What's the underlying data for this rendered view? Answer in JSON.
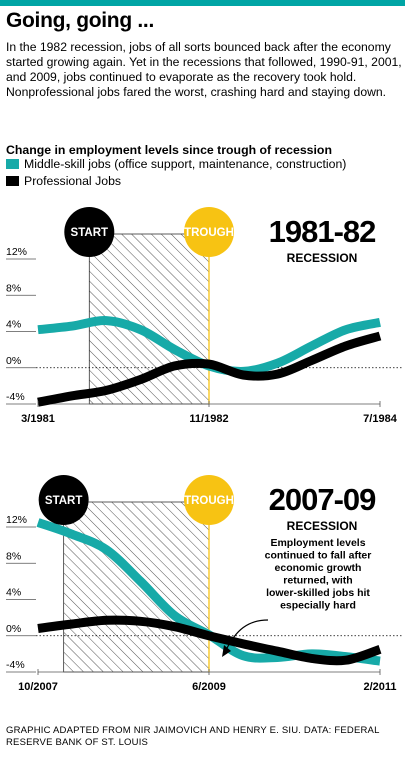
{
  "header": {
    "title": "Going, going ...",
    "intro": "In the 1982 recession, jobs of all sorts bounced back after the economy started growing again. Yet in the recessions that followed, 1990-91, 2001, and 2009, jobs continued to evaporate as the recovery took hold. Nonprofessional jobs fared the worst, crashing hard and staying down.",
    "subtitle": "Change in employment levels since trough of recession"
  },
  "legend": {
    "middle_skill": "Middle-skill jobs (office support, maintenance, construction)",
    "professional": "Professional Jobs"
  },
  "colors": {
    "accent": "#00a5a5",
    "middle_skill": "#17aaa8",
    "professional": "#000000",
    "trough": "#f7c313",
    "start": "#000000",
    "hatch": "#555555",
    "axis": "#555555"
  },
  "footer": {
    "credit": "GRAPHIC ADAPTED FROM NIR JAIMOVICH AND HENRY E. SIU. DATA: FEDERAL RESERVE BANK OF ST. LOUIS"
  },
  "chart_data": [
    {
      "type": "line",
      "title": "1981-82",
      "subtitle": "RECESSION",
      "start_label": "START",
      "trough_label": "TROUGH",
      "annotation": "",
      "ylim": [
        -4,
        12
      ],
      "yticks": [
        12,
        8,
        4,
        0,
        -4
      ],
      "ytick_labels": [
        "12%",
        "8%",
        "4%",
        "0%",
        "-4%"
      ],
      "xlim": [
        0,
        40
      ],
      "xtick_positions": [
        0,
        20,
        40
      ],
      "xtick_labels": [
        "3/1981",
        "11/1982",
        "7/1984"
      ],
      "start_x": 6,
      "trough_x": 20,
      "series": [
        {
          "name": "Middle-skill jobs (office support, maintenance, construction)",
          "x": [
            0,
            4,
            8,
            12,
            16,
            20,
            24,
            28,
            32,
            36,
            40
          ],
          "y": [
            4.2,
            4.6,
            5.2,
            4.2,
            2.0,
            0.2,
            -0.4,
            0.5,
            2.4,
            4.2,
            5.0
          ]
        },
        {
          "name": "Professional Jobs",
          "x": [
            0,
            4,
            8,
            12,
            16,
            20,
            24,
            28,
            32,
            36,
            40
          ],
          "y": [
            -3.8,
            -3.1,
            -2.5,
            -1.3,
            0.2,
            0.4,
            -0.8,
            -0.7,
            0.8,
            2.4,
            3.5
          ]
        }
      ]
    },
    {
      "type": "line",
      "title": "2007-09",
      "subtitle": "RECESSION",
      "start_label": "START",
      "trough_label": "TROUGH",
      "annotation": "Employment levels continued to fall after economic growth returned, with lower-skilled jobs hit especially hard",
      "ylim": [
        -4,
        12
      ],
      "yticks": [
        12,
        8,
        4,
        0,
        -4
      ],
      "ytick_labels": [
        "12%",
        "8%",
        "4%",
        "0%",
        "-4%"
      ],
      "xlim": [
        0,
        40
      ],
      "xtick_positions": [
        0,
        20,
        40
      ],
      "xtick_labels": [
        "10/2007",
        "6/2009",
        "2/2011"
      ],
      "start_x": 3,
      "trough_x": 20,
      "series": [
        {
          "name": "Middle-skill jobs (office support, maintenance, construction)",
          "x": [
            0,
            4,
            8,
            12,
            16,
            20,
            24,
            28,
            32,
            36,
            40
          ],
          "y": [
            12.5,
            11.2,
            9.5,
            6.0,
            2.2,
            0.1,
            -2.2,
            -2.4,
            -2.0,
            -2.3,
            -2.8
          ]
        },
        {
          "name": "Professional Jobs",
          "x": [
            0,
            4,
            8,
            12,
            16,
            20,
            24,
            28,
            32,
            36,
            40
          ],
          "y": [
            0.8,
            1.3,
            1.7,
            1.6,
            1.0,
            0.0,
            -0.9,
            -1.7,
            -2.5,
            -2.7,
            -1.5
          ]
        }
      ]
    }
  ]
}
